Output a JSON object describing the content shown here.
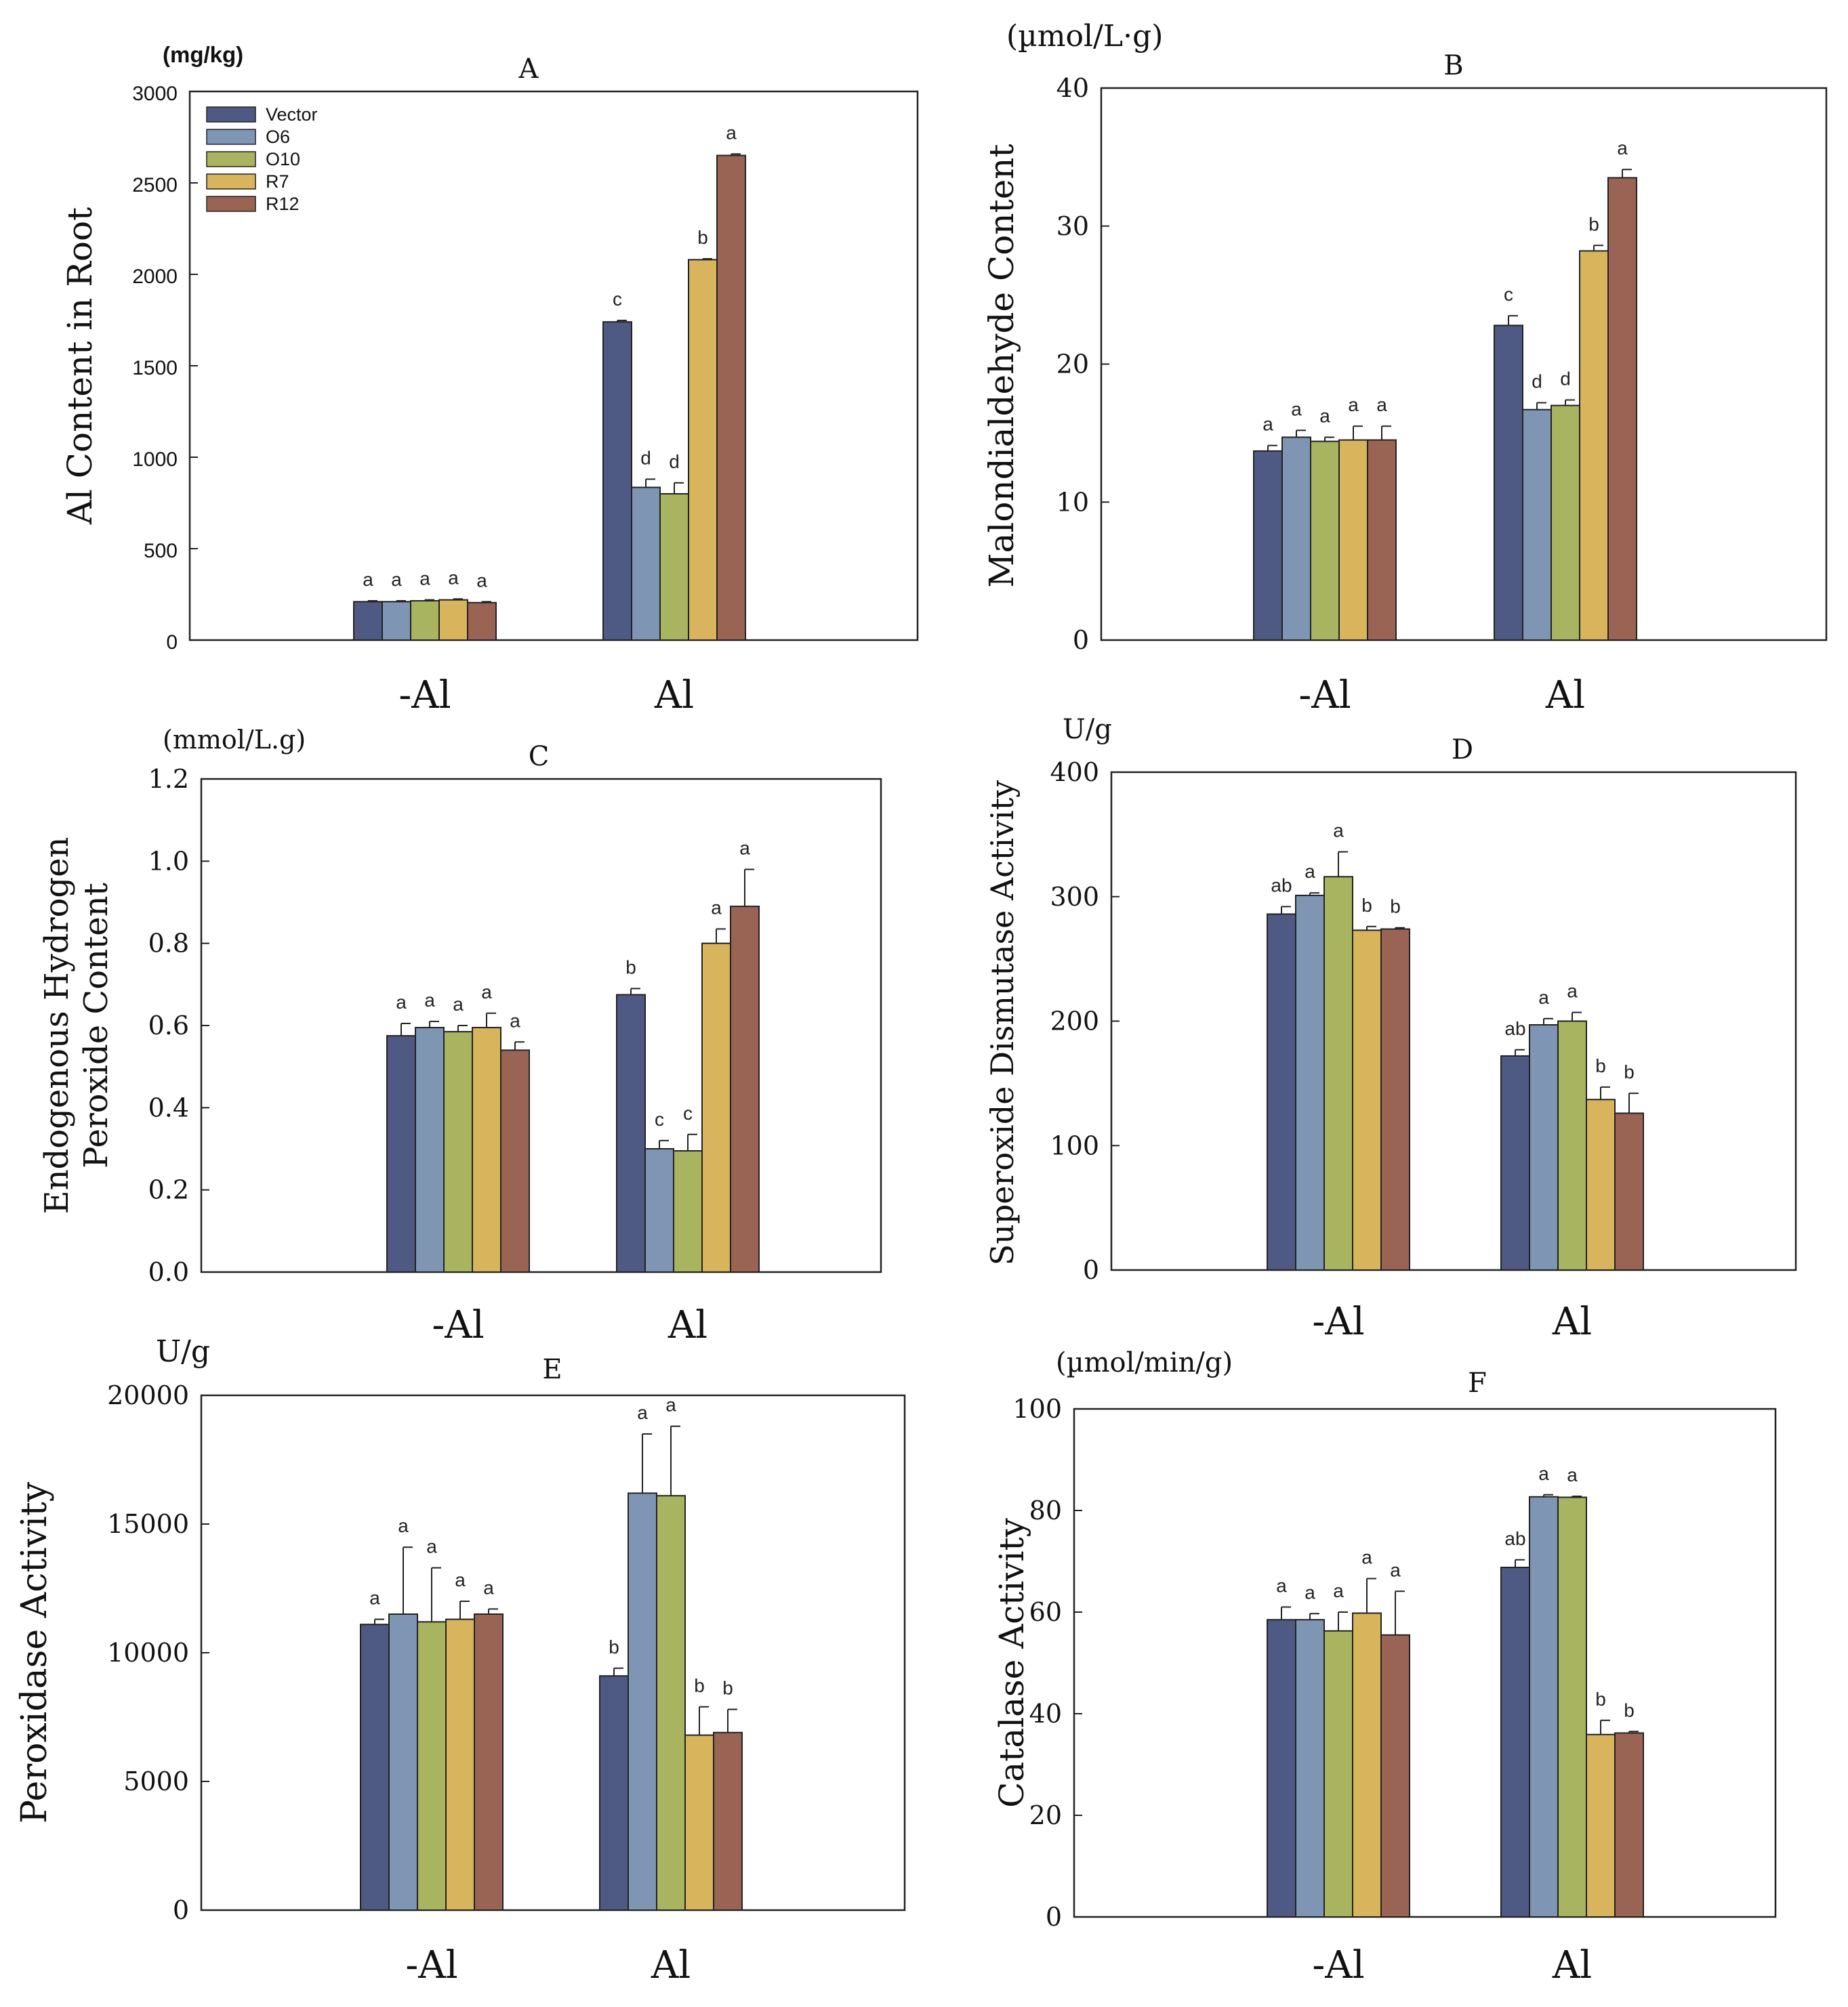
{
  "figure": {
    "legend": [
      {
        "name": "Vector",
        "color": "#4e5a83"
      },
      {
        "name": "O6",
        "color": "#7e96b4"
      },
      {
        "name": "O10",
        "color": "#a8b45f"
      },
      {
        "name": "R7",
        "color": "#d8b45c"
      },
      {
        "name": "R12",
        "color": "#9a6454"
      }
    ]
  },
  "chart_data": [
    {
      "id": "A",
      "type": "bar",
      "title": "A",
      "unit": "(mg/kg)",
      "ylabel": "Al Content in Root",
      "ylim": [
        0,
        3000
      ],
      "yticks": [
        "0",
        "500",
        "1000",
        "1500",
        "2000",
        "2500",
        "3000"
      ],
      "categories": [
        "-Al",
        "Al"
      ],
      "series": [
        {
          "name": "Vector",
          "values": [
            210,
            1740
          ],
          "errors": [
            5,
            8
          ],
          "letters": [
            "a",
            "c"
          ]
        },
        {
          "name": "O6",
          "values": [
            210,
            835
          ],
          "errors": [
            5,
            45
          ],
          "letters": [
            "a",
            "d"
          ]
        },
        {
          "name": "O10",
          "values": [
            215,
            800
          ],
          "errors": [
            5,
            60
          ],
          "letters": [
            "a",
            "d"
          ]
        },
        {
          "name": "R7",
          "values": [
            220,
            2080
          ],
          "errors": [
            5,
            5
          ],
          "letters": [
            "a",
            "b"
          ]
        },
        {
          "name": "R12",
          "values": [
            205,
            2650
          ],
          "errors": [
            5,
            8
          ],
          "letters": [
            "a",
            "a"
          ]
        }
      ]
    },
    {
      "id": "B",
      "type": "bar",
      "title": "B",
      "unit": "(µmol/L·g)",
      "ylabel": "Malondialdehyde Content",
      "ylim": [
        0,
        40
      ],
      "yticks": [
        "0",
        "10",
        "20",
        "30",
        "40"
      ],
      "categories": [
        "-Al",
        "Al"
      ],
      "series": [
        {
          "name": "Vector",
          "values": [
            13.7,
            22.8
          ],
          "errors": [
            0.4,
            0.7
          ],
          "letters": [
            "a",
            "c"
          ]
        },
        {
          "name": "O6",
          "values": [
            14.7,
            16.7
          ],
          "errors": [
            0.5,
            0.5
          ],
          "letters": [
            "a",
            "d"
          ]
        },
        {
          "name": "O10",
          "values": [
            14.4,
            17.0
          ],
          "errors": [
            0.3,
            0.4
          ],
          "letters": [
            "a",
            "d"
          ]
        },
        {
          "name": "R7",
          "values": [
            14.5,
            28.2
          ],
          "errors": [
            1.0,
            0.4
          ],
          "letters": [
            "a",
            "b"
          ]
        },
        {
          "name": "R12",
          "values": [
            14.5,
            33.5
          ],
          "errors": [
            1.0,
            0.6
          ],
          "letters": [
            "a",
            "a"
          ]
        }
      ]
    },
    {
      "id": "C",
      "type": "bar",
      "title": "C",
      "unit": "(mmol/L.g)",
      "ylabel": "Endogenous Hydrogen",
      "ylabel2": "Peroxide Content",
      "ylim": [
        0,
        1.2
      ],
      "yticks": [
        "0.0",
        "0.2",
        "0.4",
        "0.6",
        "0.8",
        "1.0",
        "1.2"
      ],
      "categories": [
        "-Al",
        "Al"
      ],
      "series": [
        {
          "name": "Vector",
          "values": [
            0.575,
            0.675
          ],
          "errors": [
            0.03,
            0.015
          ],
          "letters": [
            "a",
            "b"
          ]
        },
        {
          "name": "O6",
          "values": [
            0.595,
            0.3
          ],
          "errors": [
            0.015,
            0.02
          ],
          "letters": [
            "a",
            "c"
          ]
        },
        {
          "name": "O10",
          "values": [
            0.585,
            0.295
          ],
          "errors": [
            0.015,
            0.04
          ],
          "letters": [
            "a",
            "c"
          ]
        },
        {
          "name": "R7",
          "values": [
            0.595,
            0.8
          ],
          "errors": [
            0.035,
            0.035
          ],
          "letters": [
            "a",
            "a"
          ]
        },
        {
          "name": "R12",
          "values": [
            0.54,
            0.89
          ],
          "errors": [
            0.02,
            0.09
          ],
          "letters": [
            "a",
            "a"
          ]
        }
      ]
    },
    {
      "id": "D",
      "type": "bar",
      "title": "D",
      "unit": "U/g",
      "ylabel": "Superoxide Dismutase Activity",
      "ylim": [
        0,
        400
      ],
      "yticks": [
        "0",
        "100",
        "200",
        "300",
        "400"
      ],
      "categories": [
        "-Al",
        "Al"
      ],
      "series": [
        {
          "name": "Vector",
          "values": [
            286,
            172
          ],
          "errors": [
            6,
            5
          ],
          "letters": [
            "ab",
            "ab"
          ]
        },
        {
          "name": "O6",
          "values": [
            301,
            197
          ],
          "errors": [
            2,
            5
          ],
          "letters": [
            "a",
            "a"
          ]
        },
        {
          "name": "O10",
          "values": [
            316,
            200
          ],
          "errors": [
            20,
            7
          ],
          "letters": [
            "a",
            "a"
          ]
        },
        {
          "name": "R7",
          "values": [
            273,
            137
          ],
          "errors": [
            3,
            10
          ],
          "letters": [
            "b",
            "b"
          ]
        },
        {
          "name": "R12",
          "values": [
            274,
            126
          ],
          "errors": [
            1,
            16
          ],
          "letters": [
            "b",
            "b"
          ]
        }
      ]
    },
    {
      "id": "E",
      "type": "bar",
      "title": "E",
      "unit": "U/g",
      "ylabel": "Peroxidase  Activity",
      "ylim": [
        0,
        20000
      ],
      "yticks": [
        "0",
        "5000",
        "10000",
        "15000",
        "20000"
      ],
      "categories": [
        "-Al",
        "Al"
      ],
      "series": [
        {
          "name": "Vector",
          "values": [
            11100,
            9100
          ],
          "errors": [
            200,
            300
          ],
          "letters": [
            "a",
            "b"
          ]
        },
        {
          "name": "O6",
          "values": [
            11500,
            16200
          ],
          "errors": [
            2600,
            2300
          ],
          "letters": [
            "a",
            "a"
          ]
        },
        {
          "name": "O10",
          "values": [
            11200,
            16100
          ],
          "errors": [
            2100,
            2700
          ],
          "letters": [
            "a",
            "a"
          ]
        },
        {
          "name": "R7",
          "values": [
            11300,
            6800
          ],
          "errors": [
            700,
            1100
          ],
          "letters": [
            "a",
            "b"
          ]
        },
        {
          "name": "R12",
          "values": [
            11500,
            6900
          ],
          "errors": [
            200,
            900
          ],
          "letters": [
            "a",
            "b"
          ]
        }
      ]
    },
    {
      "id": "F",
      "type": "bar",
      "title": "F",
      "unit": "(µmol/min/g)",
      "ylabel": "Catalase  Activity",
      "ylim": [
        0,
        100
      ],
      "yticks": [
        "0",
        "20",
        "40",
        "60",
        "80",
        "100"
      ],
      "categories": [
        "-Al",
        "Al"
      ],
      "series": [
        {
          "name": "Vector",
          "values": [
            58.5,
            68.8
          ],
          "errors": [
            2.5,
            1.5
          ],
          "letters": [
            "a",
            "ab"
          ]
        },
        {
          "name": "O6",
          "values": [
            58.5,
            82.7
          ],
          "errors": [
            1.2,
            0.4
          ],
          "letters": [
            "a",
            "a"
          ]
        },
        {
          "name": "O10",
          "values": [
            56.3,
            82.6
          ],
          "errors": [
            3.7,
            0.2
          ],
          "letters": [
            "a",
            "a"
          ]
        },
        {
          "name": "R7",
          "values": [
            59.8,
            35.9
          ],
          "errors": [
            6.8,
            2.8
          ],
          "letters": [
            "a",
            "b"
          ]
        },
        {
          "name": "R12",
          "values": [
            55.5,
            36.2
          ],
          "errors": [
            8.6,
            0.3
          ],
          "letters": [
            "a",
            "b"
          ]
        }
      ]
    }
  ]
}
